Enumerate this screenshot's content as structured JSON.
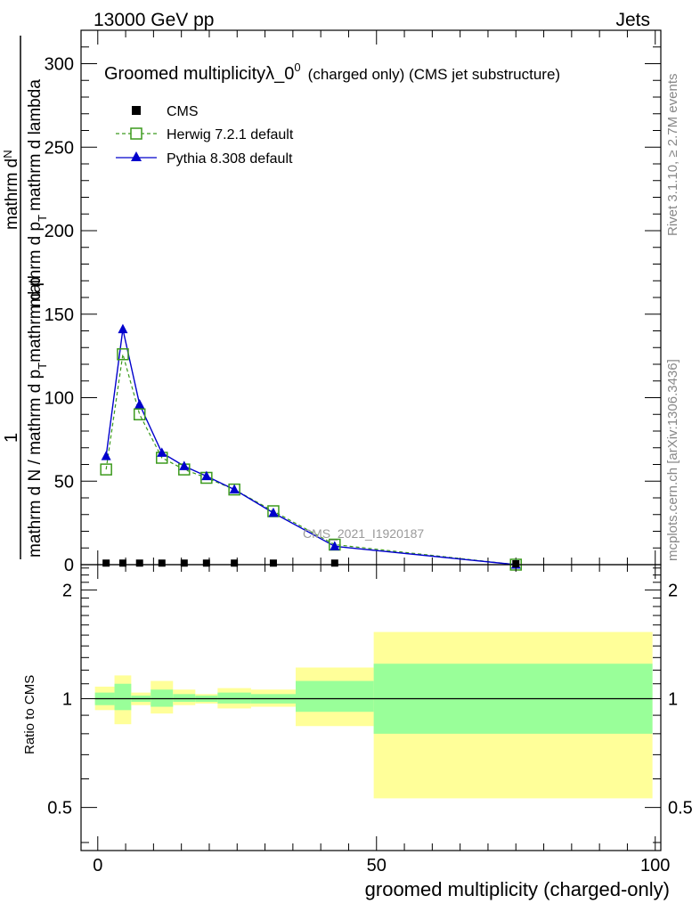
{
  "header": {
    "left": "13000 GeV pp",
    "right": "Jets"
  },
  "side": {
    "rivet": "Rivet 3.1.10, ≥ 2.7M events",
    "mcplots": "mcplots.cern.ch [arXiv:1306.3436]"
  },
  "chart_data": {
    "type": "line",
    "title": "Groomed multiplicityλ_0",
    "title_sup": "0",
    "title_small": "(charged only) (CMS jet substructure)",
    "watermark": "CMS_2021_I1920187",
    "ylabel_parts": {
      "one": "1",
      "den1": "mathrm d N / mathrm d p",
      "den2": "mathrm d p",
      "den3": "mathrm d lambda",
      "num": "mathrm d",
      "N": "N",
      "sub_T": "T",
      "sub_T2": "T"
    },
    "xlabel": "groomed multiplicity (charged-only)",
    "ratio_ylabel": "Ratio to CMS",
    "xlim": [
      -3,
      101
    ],
    "ylim": [
      0,
      320
    ],
    "ratio_ylim": [
      0.38,
      2.35
    ],
    "x_ticks": [
      "0",
      "50",
      "100"
    ],
    "y_ticks": [
      "0",
      "50",
      "100",
      "150",
      "200",
      "250",
      "300"
    ],
    "ratio_ticks": [
      "0.5",
      "1",
      "2"
    ],
    "legend": [
      {
        "name": "CMS",
        "color": "#000000",
        "marker": "square-filled"
      },
      {
        "name": "Herwig 7.2.1 default",
        "color": "#3c9a1d",
        "marker": "square-open",
        "dash": true
      },
      {
        "name": "Pythia 8.308 default",
        "color": "#0000cc",
        "marker": "triangle"
      }
    ],
    "series": [
      {
        "name": "CMS",
        "x": [
          1.5,
          4.5,
          7.5,
          11.5,
          15.5,
          19.5,
          24.5,
          31.5,
          42.5,
          75
        ],
        "y": [
          0.4,
          0.4,
          0.4,
          0.4,
          0.4,
          0.4,
          0.4,
          0.4,
          0.4,
          0
        ]
      },
      {
        "name": "Herwig 7.2.1 default",
        "x": [
          1.5,
          4.5,
          7.5,
          11.5,
          15.5,
          19.5,
          24.5,
          31.5,
          42.5,
          75
        ],
        "y": [
          57,
          126,
          90,
          64,
          57,
          52,
          45,
          32,
          12,
          0
        ]
      },
      {
        "name": "Pythia 8.308 default",
        "x": [
          1.5,
          4.5,
          7.5,
          11.5,
          15.5,
          19.5,
          24.5,
          31.5,
          42.5,
          75
        ],
        "y": [
          65,
          141,
          96,
          67,
          59,
          53,
          45,
          31,
          11,
          0
        ]
      }
    ],
    "ratio_bands": [
      {
        "x0": -0.5,
        "x1": 3,
        "y_lo": 0.93,
        "y_hi": 1.08,
        "g_lo": 0.96,
        "g_hi": 1.04
      },
      {
        "x0": 3,
        "x1": 6,
        "y_lo": 0.85,
        "y_hi": 1.16,
        "g_lo": 0.93,
        "g_hi": 1.1
      },
      {
        "x0": 6,
        "x1": 9.5,
        "y_lo": 0.96,
        "y_hi": 1.04,
        "g_lo": 0.98,
        "g_hi": 1.02
      },
      {
        "x0": 9.5,
        "x1": 13.5,
        "y_lo": 0.91,
        "y_hi": 1.12,
        "g_lo": 0.95,
        "g_hi": 1.06
      },
      {
        "x0": 13.5,
        "x1": 17.5,
        "y_lo": 0.96,
        "y_hi": 1.06,
        "g_lo": 0.98,
        "g_hi": 1.03
      },
      {
        "x0": 17.5,
        "x1": 21.5,
        "y_lo": 0.97,
        "y_hi": 1.03,
        "g_lo": 0.98,
        "g_hi": 1.02
      },
      {
        "x0": 21.5,
        "x1": 27.5,
        "y_lo": 0.94,
        "y_hi": 1.07,
        "g_lo": 0.97,
        "g_hi": 1.04
      },
      {
        "x0": 27.5,
        "x1": 35.5,
        "y_lo": 0.95,
        "y_hi": 1.06,
        "g_lo": 0.97,
        "g_hi": 1.03
      },
      {
        "x0": 35.5,
        "x1": 49.5,
        "y_lo": 0.84,
        "y_hi": 1.22,
        "g_lo": 0.92,
        "g_hi": 1.12
      },
      {
        "x0": 49.5,
        "x1": 99.5,
        "y_lo": 0.53,
        "y_hi": 1.53,
        "g_lo": 0.8,
        "g_hi": 1.25
      }
    ],
    "colors": {
      "band_yellow": "#ffff99",
      "band_green": "#99ff99",
      "cms": "#000000",
      "herwig": "#3c9a1d",
      "pythia": "#0000cc",
      "watermark": "#9a9a9a"
    }
  }
}
